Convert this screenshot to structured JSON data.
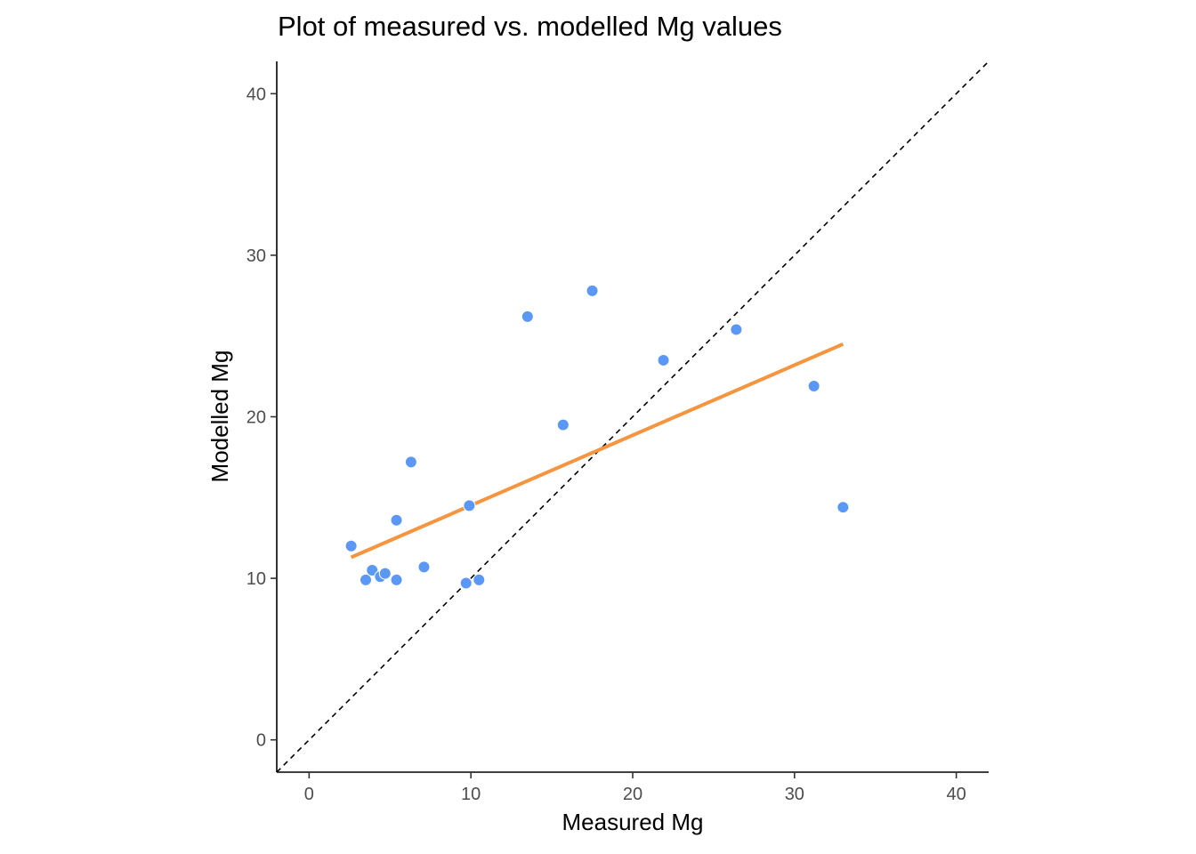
{
  "chart_data": {
    "type": "scatter",
    "title": "Plot of measured vs. modelled Mg values",
    "xlabel": "Measured Mg",
    "ylabel": "Modelled Mg",
    "xlim": [
      -2,
      42
    ],
    "ylim": [
      -2,
      42
    ],
    "xticks": [
      0,
      10,
      20,
      30,
      40
    ],
    "yticks": [
      0,
      10,
      20,
      30,
      40
    ],
    "grid": false,
    "points_color": "#5b97f5",
    "fit_color": "#f6953f",
    "identity_color": "#000000",
    "points": [
      {
        "x": 2.6,
        "y": 12.0
      },
      {
        "x": 3.5,
        "y": 9.9
      },
      {
        "x": 3.9,
        "y": 10.5
      },
      {
        "x": 4.4,
        "y": 10.1
      },
      {
        "x": 4.7,
        "y": 10.3
      },
      {
        "x": 5.4,
        "y": 13.6
      },
      {
        "x": 5.4,
        "y": 9.9
      },
      {
        "x": 6.3,
        "y": 17.2
      },
      {
        "x": 7.1,
        "y": 10.7
      },
      {
        "x": 9.7,
        "y": 9.7
      },
      {
        "x": 9.9,
        "y": 14.5
      },
      {
        "x": 10.5,
        "y": 9.9
      },
      {
        "x": 13.5,
        "y": 26.2
      },
      {
        "x": 15.7,
        "y": 19.5
      },
      {
        "x": 17.5,
        "y": 27.8
      },
      {
        "x": 21.9,
        "y": 23.5
      },
      {
        "x": 26.4,
        "y": 25.4
      },
      {
        "x": 31.2,
        "y": 21.9
      },
      {
        "x": 33.0,
        "y": 14.4
      }
    ],
    "fit_line": {
      "x": [
        2.6,
        33.0
      ],
      "y": [
        11.3,
        24.5
      ]
    },
    "identity_line": {
      "x": [
        -2,
        42
      ],
      "y": [
        -2,
        42
      ]
    }
  }
}
